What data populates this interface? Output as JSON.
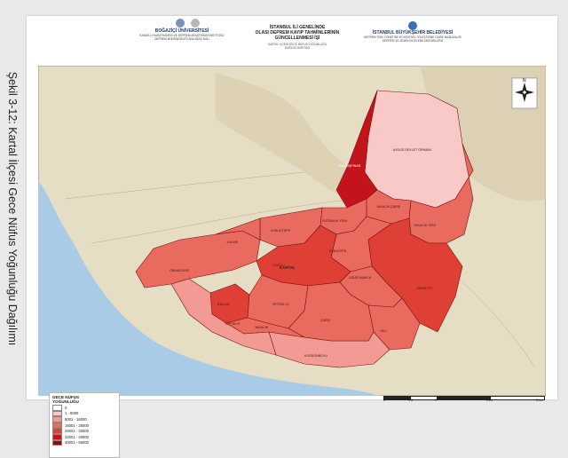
{
  "caption": "Şekil 3-12: Kartal İlçesi Gece Nüfus Yoğunluğu Dağılımı",
  "header": {
    "left_org": {
      "name": "BOĞAZİÇİ ÜNİVERSİTESİ",
      "sub1": "KANDİLLİ RASATHANESİ VE DEPREM ARAŞTIRMA ENSTİTÜSÜ",
      "sub2": "DEPREM MÜHENDİSLİĞİ ANA BİLİM DALI"
    },
    "title_lines": [
      "İSTANBUL İLİ GENELİNDE",
      "OLASI DEPREM KAYIP TAHMİNLERİNİN",
      "GÜNCELLENMESİ İŞİ"
    ],
    "subtitle_lines": [
      "KARTAL İLÇESİ GECE NÜFUS YOĞUNLUĞU",
      "DAĞILIM HARİTASI"
    ],
    "right_org": {
      "name": "İSTANBUL BÜYÜKŞEHİR BELEDİYESİ",
      "sub1": "DEPREM RİSK YÖNETİMİ VE KENTSEL İYİLEŞTİRME DAİRE BAŞKANLIĞI",
      "sub2": "DEPREM VE ZEMİN İNCELEME MÜDÜRLÜĞÜ"
    }
  },
  "map": {
    "north_label": "N",
    "district_label": "KARTAL",
    "neighborhoods": [
      {
        "name": "AYDOS DEVLET ORMANI",
        "class": 1
      },
      {
        "name": "GÜMÜŞPINAR",
        "class": 5
      },
      {
        "name": "YAKACIK ÇARŞI",
        "class": 3
      },
      {
        "name": "YAKACIK YENİ",
        "class": 3
      },
      {
        "name": "SOĞANLIK YENİ",
        "class": 3
      },
      {
        "name": "KARLIKTEPE",
        "class": 3
      },
      {
        "name": "HÜRRİYET",
        "class": 4
      },
      {
        "name": "ESENTEPE",
        "class": 3
      },
      {
        "name": "ORHANTEPE",
        "class": 3
      },
      {
        "name": "YUKARI",
        "class": 3
      },
      {
        "name": "UĞUR MUMCU",
        "class": 3
      },
      {
        "name": "YALI",
        "class": 3
      },
      {
        "name": "KORDONBOYU",
        "class": 2
      },
      {
        "name": "ATALAR",
        "class": 4
      },
      {
        "name": "CEVİZLİ",
        "class": 4
      },
      {
        "name": "TOPSELVİ",
        "class": 2
      },
      {
        "name": "PETROL İŞ",
        "class": 3
      },
      {
        "name": "ÇARŞI",
        "class": 3
      },
      {
        "name": "YAKACIK",
        "class": 3
      }
    ],
    "colors": {
      "water": "#a9cbe6",
      "land": "#e6ddc5",
      "boundary": "#7a1010"
    }
  },
  "legend": {
    "title_lines": [
      "GECE NÜFUS",
      "YOĞUNLUĞU"
    ],
    "items": [
      {
        "label": "0",
        "color": "#ffffff"
      },
      {
        "label": "1 - 8000",
        "color": "#f8c9c7"
      },
      {
        "label": "8001 - 16000",
        "color": "#f19b94"
      },
      {
        "label": "16001 - 25000",
        "color": "#e96a5f"
      },
      {
        "label": "25001 - 32000",
        "color": "#df4035"
      },
      {
        "label": "32001 - 40000",
        "color": "#c4141b"
      },
      {
        "label": "40001 - 56000",
        "color": "#8c0c10"
      }
    ]
  },
  "scale_bar": {
    "labels": [
      "0",
      "0.5",
      "1",
      "2.25",
      "3 km"
    ]
  }
}
